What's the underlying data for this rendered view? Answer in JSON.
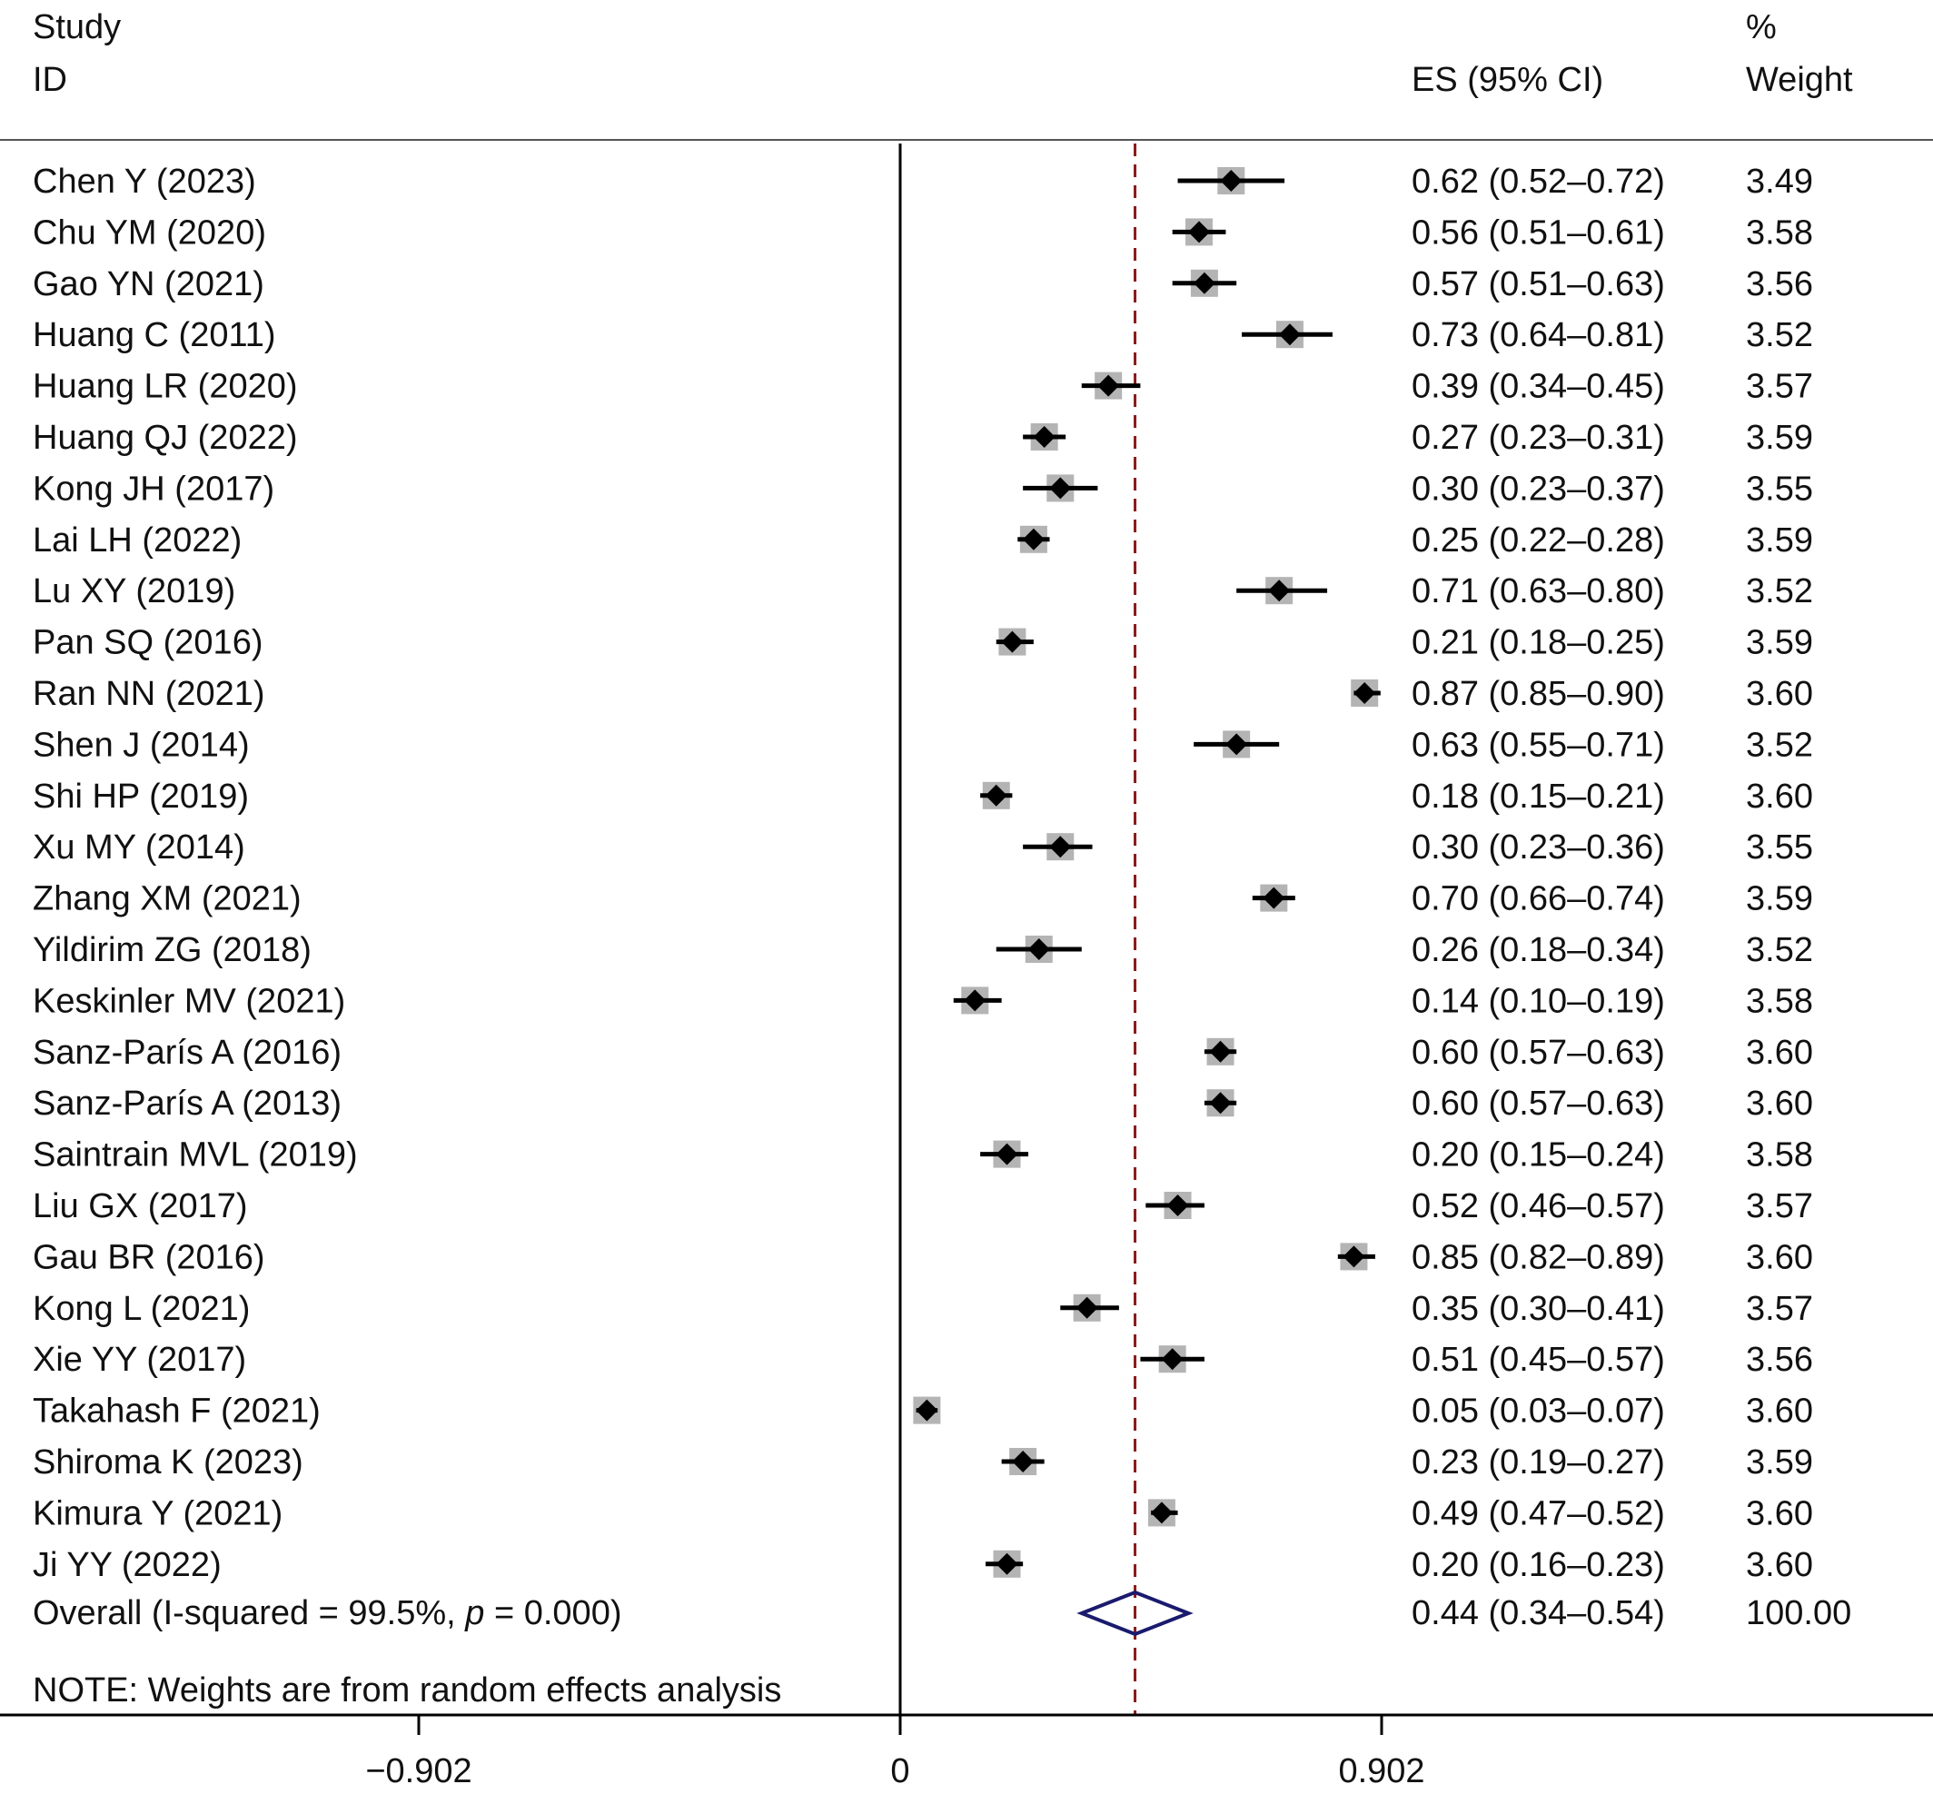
{
  "header": {
    "study_line1": "Study",
    "study_line2": "ID",
    "es_header": "ES (95% CI)",
    "weight_line1": "%",
    "weight_line2": "Weight"
  },
  "overall": {
    "label_prefix": "Overall  (I-squared = 99.5%, ",
    "label_p_symbol": "p",
    "label_suffix": " = 0.000)",
    "es": 0.44,
    "lo": 0.34,
    "hi": 0.54,
    "es_text": "0.44 (0.34–0.54)",
    "weight_text": "100.00"
  },
  "note": "NOTE: Weights are from random effects analysis",
  "colors": {
    "overall_diamond": "#1a1a6e",
    "reference_line": "#8b1a1a",
    "weight_box": "#b4b4b4",
    "point": "#000000"
  },
  "chart_data": {
    "type": "forest",
    "xlim": [
      -1.8,
      1.9
    ],
    "xticks": [
      -0.902,
      0,
      0.902
    ],
    "xtick_labels": [
      "−0.902",
      "0",
      "0.902"
    ],
    "reference_line_at": 0.44,
    "studies": [
      {
        "label": "Chen Y (2023)",
        "es": 0.62,
        "lo": 0.52,
        "hi": 0.72,
        "es_text": "0.62 (0.52–0.72)",
        "weight": "3.49"
      },
      {
        "label": "Chu YM (2020)",
        "es": 0.56,
        "lo": 0.51,
        "hi": 0.61,
        "es_text": "0.56 (0.51–0.61)",
        "weight": "3.58"
      },
      {
        "label": "Gao YN (2021)",
        "es": 0.57,
        "lo": 0.51,
        "hi": 0.63,
        "es_text": "0.57 (0.51–0.63)",
        "weight": "3.56"
      },
      {
        "label": "Huang C (2011)",
        "es": 0.73,
        "lo": 0.64,
        "hi": 0.81,
        "es_text": "0.73 (0.64–0.81)",
        "weight": "3.52"
      },
      {
        "label": "Huang LR (2020)",
        "es": 0.39,
        "lo": 0.34,
        "hi": 0.45,
        "es_text": "0.39 (0.34–0.45)",
        "weight": "3.57"
      },
      {
        "label": "Huang QJ (2022)",
        "es": 0.27,
        "lo": 0.23,
        "hi": 0.31,
        "es_text": "0.27 (0.23–0.31)",
        "weight": "3.59"
      },
      {
        "label": "Kong JH (2017)",
        "es": 0.3,
        "lo": 0.23,
        "hi": 0.37,
        "es_text": "0.30 (0.23–0.37)",
        "weight": "3.55"
      },
      {
        "label": "Lai LH (2022)",
        "es": 0.25,
        "lo": 0.22,
        "hi": 0.28,
        "es_text": "0.25 (0.22–0.28)",
        "weight": "3.59"
      },
      {
        "label": "Lu XY (2019)",
        "es": 0.71,
        "lo": 0.63,
        "hi": 0.8,
        "es_text": "0.71 (0.63–0.80)",
        "weight": "3.52"
      },
      {
        "label": "Pan SQ (2016)",
        "es": 0.21,
        "lo": 0.18,
        "hi": 0.25,
        "es_text": "0.21 (0.18–0.25)",
        "weight": "3.59"
      },
      {
        "label": "Ran NN (2021)",
        "es": 0.87,
        "lo": 0.85,
        "hi": 0.9,
        "es_text": "0.87 (0.85–0.90)",
        "weight": "3.60"
      },
      {
        "label": "Shen J (2014)",
        "es": 0.63,
        "lo": 0.55,
        "hi": 0.71,
        "es_text": "0.63 (0.55–0.71)",
        "weight": "3.52"
      },
      {
        "label": "Shi HP (2019)",
        "es": 0.18,
        "lo": 0.15,
        "hi": 0.21,
        "es_text": "0.18 (0.15–0.21)",
        "weight": "3.60"
      },
      {
        "label": "Xu MY (2014)",
        "es": 0.3,
        "lo": 0.23,
        "hi": 0.36,
        "es_text": "0.30 (0.23–0.36)",
        "weight": "3.55"
      },
      {
        "label": "Zhang XM (2021)",
        "es": 0.7,
        "lo": 0.66,
        "hi": 0.74,
        "es_text": "0.70 (0.66–0.74)",
        "weight": "3.59"
      },
      {
        "label": "Yildirim ZG (2018)",
        "es": 0.26,
        "lo": 0.18,
        "hi": 0.34,
        "es_text": "0.26 (0.18–0.34)",
        "weight": "3.52"
      },
      {
        "label": "Keskinler MV (2021)",
        "es": 0.14,
        "lo": 0.1,
        "hi": 0.19,
        "es_text": "0.14 (0.10–0.19)",
        "weight": "3.58"
      },
      {
        "label": "Sanz-París A (2016)",
        "es": 0.6,
        "lo": 0.57,
        "hi": 0.63,
        "es_text": "0.60 (0.57–0.63)",
        "weight": "3.60"
      },
      {
        "label": "Sanz-París A (2013)",
        "es": 0.6,
        "lo": 0.57,
        "hi": 0.63,
        "es_text": "0.60 (0.57–0.63)",
        "weight": "3.60"
      },
      {
        "label": "Saintrain MVL (2019)",
        "es": 0.2,
        "lo": 0.15,
        "hi": 0.24,
        "es_text": "0.20 (0.15–0.24)",
        "weight": "3.58"
      },
      {
        "label": "Liu GX (2017)",
        "es": 0.52,
        "lo": 0.46,
        "hi": 0.57,
        "es_text": "0.52 (0.46–0.57)",
        "weight": "3.57"
      },
      {
        "label": "Gau BR (2016)",
        "es": 0.85,
        "lo": 0.82,
        "hi": 0.89,
        "es_text": "0.85 (0.82–0.89)",
        "weight": "3.60"
      },
      {
        "label": "Kong L (2021)",
        "es": 0.35,
        "lo": 0.3,
        "hi": 0.41,
        "es_text": "0.35 (0.30–0.41)",
        "weight": "3.57"
      },
      {
        "label": "Xie YY (2017)",
        "es": 0.51,
        "lo": 0.45,
        "hi": 0.57,
        "es_text": "0.51 (0.45–0.57)",
        "weight": "3.56"
      },
      {
        "label": "Takahash F (2021)",
        "es": 0.05,
        "lo": 0.03,
        "hi": 0.07,
        "es_text": "0.05 (0.03–0.07)",
        "weight": "3.60"
      },
      {
        "label": "Shiroma K (2023)",
        "es": 0.23,
        "lo": 0.19,
        "hi": 0.27,
        "es_text": "0.23 (0.19–0.27)",
        "weight": "3.59"
      },
      {
        "label": "Kimura Y (2021)",
        "es": 0.49,
        "lo": 0.47,
        "hi": 0.52,
        "es_text": "0.49 (0.47–0.52)",
        "weight": "3.60"
      },
      {
        "label": "Ji YY (2022)",
        "es": 0.2,
        "lo": 0.16,
        "hi": 0.23,
        "es_text": "0.20 (0.16–0.23)",
        "weight": "3.60"
      }
    ]
  }
}
